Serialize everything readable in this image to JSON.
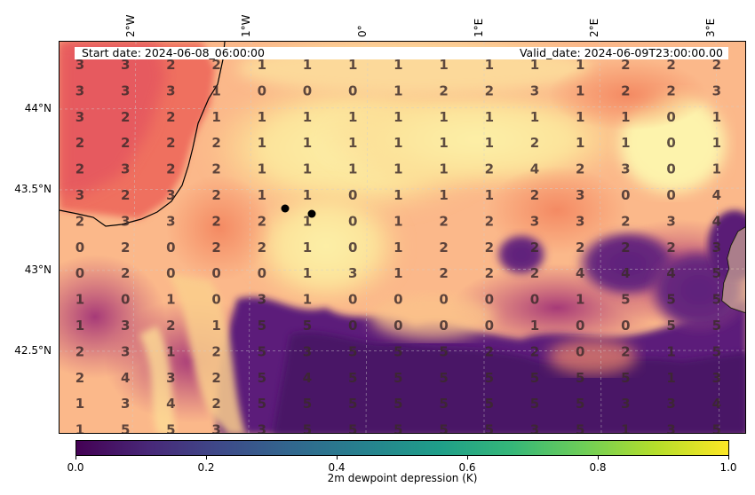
{
  "lon_labels": [
    "2°W",
    "1°W",
    "0°",
    "1°E",
    "2°E",
    "3°E"
  ],
  "lat_labels": [
    "44°N",
    "43.5°N",
    "43°N",
    "42.5°N"
  ],
  "start_date": "Start date: 2024-06-08_06:00:00",
  "valid_date": "Valid_date: 2024-06-09T23:00:00.00",
  "colorbar": {
    "label": "2m dewpoint depression (K)",
    "ticks": [
      "0.0",
      "0.2",
      "0.4",
      "0.6",
      "0.8",
      "1.0"
    ],
    "colormap": "viridis",
    "min": 0.0,
    "max": 1.0
  },
  "field_colormap": "magma",
  "markers": [
    "city-dot",
    "city-dot"
  ],
  "grid_values": [
    [
      3,
      3,
      2,
      2,
      1,
      1,
      1,
      1,
      1,
      1,
      1,
      1,
      2,
      2,
      2
    ],
    [
      3,
      3,
      3,
      1,
      0,
      0,
      0,
      1,
      2,
      2,
      3,
      1,
      2,
      2,
      3
    ],
    [
      3,
      2,
      2,
      1,
      1,
      1,
      1,
      1,
      1,
      1,
      1,
      1,
      1,
      0,
      1
    ],
    [
      2,
      2,
      2,
      2,
      1,
      1,
      1,
      1,
      1,
      1,
      2,
      1,
      1,
      0,
      1
    ],
    [
      2,
      3,
      2,
      2,
      1,
      1,
      1,
      1,
      1,
      2,
      4,
      2,
      3,
      0,
      1
    ],
    [
      3,
      2,
      3,
      2,
      1,
      1,
      0,
      1,
      1,
      1,
      2,
      3,
      0,
      0,
      4
    ],
    [
      2,
      3,
      3,
      2,
      2,
      1,
      0,
      1,
      2,
      2,
      3,
      3,
      2,
      3,
      4
    ],
    [
      0,
      2,
      0,
      2,
      2,
      1,
      0,
      1,
      2,
      2,
      2,
      2,
      2,
      2,
      3
    ],
    [
      0,
      2,
      0,
      0,
      0,
      1,
      3,
      1,
      2,
      2,
      2,
      4,
      4,
      4,
      5
    ],
    [
      1,
      0,
      1,
      0,
      3,
      1,
      0,
      0,
      0,
      0,
      0,
      1,
      5,
      5,
      5
    ],
    [
      1,
      3,
      2,
      1,
      5,
      5,
      0,
      0,
      0,
      0,
      1,
      0,
      0,
      5,
      5
    ],
    [
      2,
      3,
      1,
      2,
      5,
      3,
      5,
      5,
      5,
      2,
      2,
      0,
      2,
      1,
      5
    ],
    [
      2,
      4,
      3,
      2,
      5,
      4,
      5,
      5,
      5,
      5,
      5,
      5,
      5,
      1,
      3
    ],
    [
      1,
      3,
      4,
      2,
      5,
      5,
      5,
      5,
      5,
      5,
      5,
      5,
      3,
      3,
      4
    ],
    [
      1,
      5,
      5,
      3,
      3,
      5,
      5,
      5,
      5,
      5,
      3,
      5,
      1,
      3,
      5
    ]
  ]
}
